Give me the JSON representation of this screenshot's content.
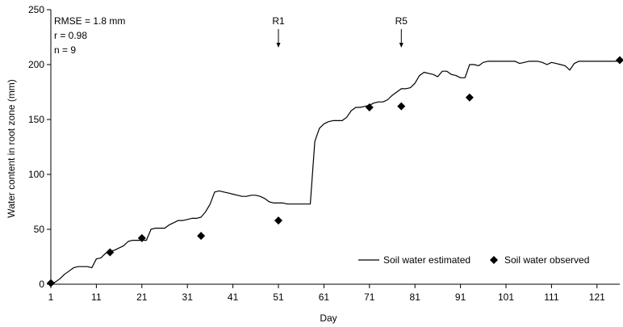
{
  "chart_data": {
    "type": "line",
    "title": "",
    "xlabel": "Day",
    "ylabel": "Water content in root zone (mm)",
    "xlim": [
      1,
      126
    ],
    "ylim": [
      0,
      250
    ],
    "xticks": [
      1,
      11,
      21,
      31,
      41,
      51,
      61,
      71,
      81,
      91,
      101,
      111,
      121
    ],
    "yticks": [
      0,
      50,
      100,
      150,
      200,
      250
    ],
    "grid": false,
    "legend_position": "bottom-right",
    "stats": [
      "RMSE = 1.8 mm",
      "r = 0.98",
      "n = 9"
    ],
    "annotations": [
      {
        "label": "R1",
        "x": 51
      },
      {
        "label": "R5",
        "x": 78
      }
    ],
    "series": [
      {
        "name": "Soil water estimated",
        "style": "line",
        "color": "#000000",
        "x": [
          1,
          2,
          3,
          4,
          5,
          6,
          7,
          8,
          9,
          10,
          11,
          12,
          13,
          14,
          15,
          16,
          17,
          18,
          19,
          20,
          21,
          22,
          23,
          24,
          25,
          26,
          27,
          28,
          29,
          30,
          31,
          32,
          33,
          34,
          35,
          36,
          37,
          38,
          39,
          40,
          41,
          42,
          43,
          44,
          45,
          46,
          47,
          48,
          49,
          50,
          51,
          52,
          53,
          54,
          55,
          56,
          57,
          58,
          59,
          60,
          61,
          62,
          63,
          64,
          65,
          66,
          67,
          68,
          69,
          70,
          71,
          72,
          73,
          74,
          75,
          76,
          77,
          78,
          79,
          80,
          81,
          82,
          83,
          84,
          85,
          86,
          87,
          88,
          89,
          90,
          91,
          92,
          93,
          94,
          95,
          96,
          97,
          98,
          99,
          100,
          101,
          102,
          103,
          104,
          105,
          106,
          107,
          108,
          109,
          110,
          111,
          112,
          113,
          114,
          115,
          116,
          117,
          118,
          119,
          120,
          121,
          122,
          123,
          124,
          125,
          126
        ],
        "y": [
          0,
          2,
          5,
          9,
          12,
          15,
          16,
          16,
          16,
          15,
          23,
          24,
          28,
          30,
          31,
          33,
          35,
          39,
          40,
          40,
          40,
          40,
          50,
          51,
          51,
          51,
          54,
          56,
          58,
          58,
          59,
          60,
          60,
          61,
          66,
          73,
          84,
          85,
          84,
          83,
          82,
          81,
          80,
          80,
          81,
          81,
          80,
          78,
          75,
          74,
          74,
          74,
          73,
          73,
          73,
          73,
          73,
          73,
          130,
          142,
          146,
          148,
          149,
          149,
          149,
          152,
          158,
          161,
          161,
          162,
          163,
          165,
          166,
          166,
          168,
          172,
          175,
          178,
          178,
          179,
          183,
          190,
          193,
          192,
          191,
          189,
          194,
          194,
          191,
          190,
          188,
          188,
          200,
          200,
          199,
          202,
          203,
          203,
          203,
          203,
          203,
          203,
          203,
          201,
          202,
          203,
          203,
          203,
          202,
          200,
          202,
          201,
          200,
          199,
          195,
          201,
          203,
          203,
          203,
          203,
          203,
          203,
          203,
          203,
          203,
          203
        ]
      },
      {
        "name": "Soil water observed",
        "style": "marker",
        "marker": "diamond",
        "color": "#000000",
        "x": [
          1,
          14,
          21,
          34,
          51,
          71,
          78,
          93,
          126
        ],
        "y": [
          1,
          29,
          42,
          44,
          58,
          161,
          162,
          170,
          204
        ]
      }
    ]
  }
}
